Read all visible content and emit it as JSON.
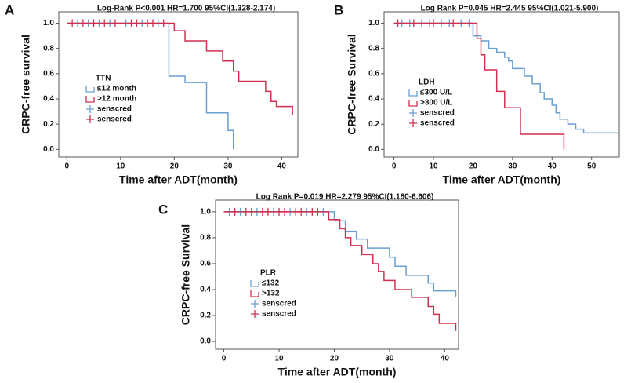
{
  "chart_data": [
    {
      "type": "step",
      "panel": "A",
      "annotation": "Log-Rank P<0.001  HR=1.700  95%CI(1.328-2.174)",
      "x_label": "Time after ADT(month)",
      "y_label": "CRPC-free survival",
      "legend_title": "TTN",
      "xlim": [
        -1.5,
        43
      ],
      "ylim": [
        -0.06,
        1.09
      ],
      "xticks": [
        0,
        10,
        20,
        30,
        40
      ],
      "yticks": [
        {
          "value": 0,
          "label": "0.0"
        },
        {
          "value": 0.2,
          "label": "0.2"
        },
        {
          "value": 0.4,
          "label": "0.4"
        },
        {
          "value": 0.6,
          "label": "0.6"
        },
        {
          "value": 0.8,
          "label": "0.8"
        },
        {
          "value": 1,
          "label": "1.0"
        }
      ],
      "series": [
        {
          "name": "≤12 month",
          "color": "#6a9fd4",
          "censor_label": "senscred",
          "x": [
            0,
            19,
            22,
            26,
            30,
            31
          ],
          "values": [
            1.0,
            0.58,
            0.53,
            0.29,
            0.15,
            0.0
          ],
          "censored": [
            2,
            4,
            6,
            8,
            11,
            14,
            17
          ]
        },
        {
          "name": ">12 month",
          "color": "#d0304f",
          "censor_label": "senscred",
          "x": [
            0,
            20,
            22,
            26,
            29,
            31,
            32,
            37,
            38,
            39,
            42
          ],
          "values": [
            1.0,
            0.94,
            0.86,
            0.78,
            0.7,
            0.62,
            0.54,
            0.46,
            0.38,
            0.34,
            0.27
          ],
          "censored": [
            1,
            3,
            5,
            7,
            9,
            12,
            13,
            15,
            16,
            18
          ]
        }
      ]
    },
    {
      "type": "step",
      "panel": "B",
      "annotation": "Log Rank P=0.045   HR=2.445   95%CI(1.021-5.900)",
      "x_label": "Time after ADT(month)",
      "y_label": "CRPC-free Survival",
      "legend_title": "LDH",
      "xlim": [
        -2.5,
        57
      ],
      "ylim": [
        -0.06,
        1.09
      ],
      "xticks": [
        0,
        10,
        20,
        30,
        40,
        50
      ],
      "yticks": [
        {
          "value": 0,
          "label": "0.0"
        },
        {
          "value": 0.2,
          "label": "0.2"
        },
        {
          "value": 0.4,
          "label": "0.4"
        },
        {
          "value": 0.6,
          "label": "0.6"
        },
        {
          "value": 0.8,
          "label": "0.8"
        },
        {
          "value": 1,
          "label": "1.0"
        }
      ],
      "series": [
        {
          "name": "≤300 U/L",
          "color": "#6a9fd4",
          "censor_label": "senscred",
          "x": [
            0,
            20,
            22,
            24,
            26,
            28,
            29,
            30,
            33,
            35,
            37,
            38,
            40,
            41,
            42,
            44,
            46,
            48,
            57
          ],
          "values": [
            1.0,
            0.9,
            0.86,
            0.8,
            0.77,
            0.73,
            0.7,
            0.64,
            0.58,
            0.52,
            0.45,
            0.4,
            0.35,
            0.29,
            0.24,
            0.2,
            0.16,
            0.13,
            0.13
          ],
          "censored": [
            2,
            4,
            7,
            9,
            12,
            14,
            17,
            19
          ]
        },
        {
          "name": ">300 U/L",
          "color": "#d0304f",
          "censor_label": "senscred",
          "x": [
            0,
            21,
            22,
            23,
            26,
            28,
            32,
            43
          ],
          "values": [
            1.0,
            0.88,
            0.75,
            0.63,
            0.46,
            0.33,
            0.12,
            0.0
          ],
          "censored": [
            1,
            5,
            10,
            15
          ]
        }
      ]
    },
    {
      "type": "step",
      "panel": "C",
      "annotation": "Log Rank P=0.019  HR=2.279   95%CI(1.180-6.606)",
      "x_label": "Time after ADT(month)",
      "y_label": "CRPC-free Survival",
      "legend_title": "PLR",
      "xlim": [
        -1.5,
        42.5
      ],
      "ylim": [
        -0.06,
        1.09
      ],
      "xticks": [
        0,
        10,
        20,
        30,
        40
      ],
      "yticks": [
        {
          "value": 0,
          "label": "0.0"
        },
        {
          "value": 0.2,
          "label": "0.2"
        },
        {
          "value": 0.4,
          "label": "0.4"
        },
        {
          "value": 0.6,
          "label": "0.6"
        },
        {
          "value": 0.8,
          "label": "0.8"
        },
        {
          "value": 1,
          "label": "1.0"
        }
      ],
      "series": [
        {
          "name": "≤132",
          "color": "#6a9fd4",
          "censor_label": "senscred",
          "x": [
            0,
            20,
            22,
            24,
            26,
            30,
            31,
            33,
            37,
            38,
            42
          ],
          "values": [
            1.0,
            0.93,
            0.85,
            0.79,
            0.72,
            0.65,
            0.58,
            0.51,
            0.45,
            0.39,
            0.34
          ],
          "censored": [
            1,
            3,
            6,
            9,
            12,
            15,
            18
          ]
        },
        {
          "name": ">132",
          "color": "#d0304f",
          "censor_label": "senscred",
          "x": [
            0,
            19,
            21,
            22,
            23,
            25,
            27,
            28,
            29,
            31,
            34,
            37,
            38,
            39,
            42
          ],
          "values": [
            1.0,
            0.94,
            0.87,
            0.8,
            0.74,
            0.67,
            0.6,
            0.54,
            0.47,
            0.4,
            0.34,
            0.27,
            0.21,
            0.14,
            0.08
          ],
          "censored": [
            2,
            4,
            5,
            7,
            8,
            10,
            11,
            13,
            14,
            16,
            17
          ]
        }
      ]
    }
  ]
}
